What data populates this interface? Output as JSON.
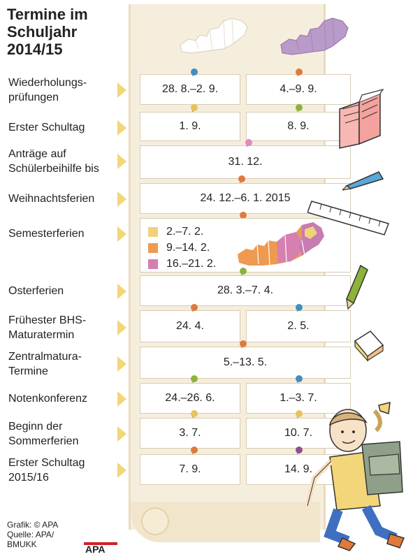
{
  "title_lines": [
    "Termine im",
    "Schuljahr",
    "2014/15"
  ],
  "rows": [
    {
      "label_lines": [
        "Wiederholungs-",
        "prüfungen"
      ],
      "west": "28. 8.–2. 9.",
      "east": "4.–9. 9."
    },
    {
      "label_lines": [
        "Erster Schultag",
        ""
      ],
      "west": "1. 9.",
      "east": "8. 9."
    },
    {
      "label_lines": [
        "Anträge auf",
        "Schülerbeihilfe bis"
      ],
      "all": "31. 12."
    },
    {
      "label_lines": [
        "Weihnachtsferien",
        ""
      ],
      "all": "24. 12.–6. 1. 2015"
    },
    {
      "label_lines": [
        "Semesterferien",
        ""
      ]
    },
    {
      "label_lines": [
        "Osterferien",
        ""
      ],
      "all": "28. 3.–7. 4."
    },
    {
      "label_lines": [
        "Frühester BHS-",
        "Maturatermin"
      ],
      "west": "24. 4.",
      "east": "2. 5."
    },
    {
      "label_lines": [
        "Zentralmatura-",
        "Termine"
      ],
      "all": "5.–13. 5."
    },
    {
      "label_lines": [
        "Notenkonferenz",
        ""
      ],
      "west": "24.–26. 6.",
      "east": "1.–3. 7."
    },
    {
      "label_lines": [
        "Beginn der",
        "Sommerferien"
      ],
      "west": "3. 7.",
      "east": "10. 7."
    },
    {
      "label_lines": [
        "Erster Schultag",
        "2015/16"
      ],
      "west": "7. 9.",
      "east": "14. 9."
    }
  ],
  "semesterferien": [
    {
      "dates": "2.–7. 2.",
      "color": "#f0d27a"
    },
    {
      "dates": "9.–14. 2.",
      "color": "#ee9a50"
    },
    {
      "dates": "16.–21. 2.",
      "color": "#d580b0"
    }
  ],
  "colors": {
    "region_west": "#ffffff",
    "region_east": "#b99ac8",
    "arrow": "#f3d679",
    "pin_blue": "#3f8fc0",
    "pin_orange": "#e07a3c",
    "pin_yellow": "#e8c25a",
    "pin_green": "#8cb33a",
    "pin_pink": "#e08ac0",
    "pin_purple": "#8d4f8e"
  },
  "footer": {
    "line1": "Grafik: © APA",
    "line2": "Quelle: APA/",
    "line3": "BMUKK"
  },
  "logo_text": "APA",
  "icons": [
    "map-of-austria-west-icon",
    "map-of-austria-east-icon",
    "open-book-icon",
    "pencil-icon",
    "ruler-icon",
    "green-pencil-icon",
    "eraser-icon",
    "schoolgirl-with-backpack-icon"
  ]
}
